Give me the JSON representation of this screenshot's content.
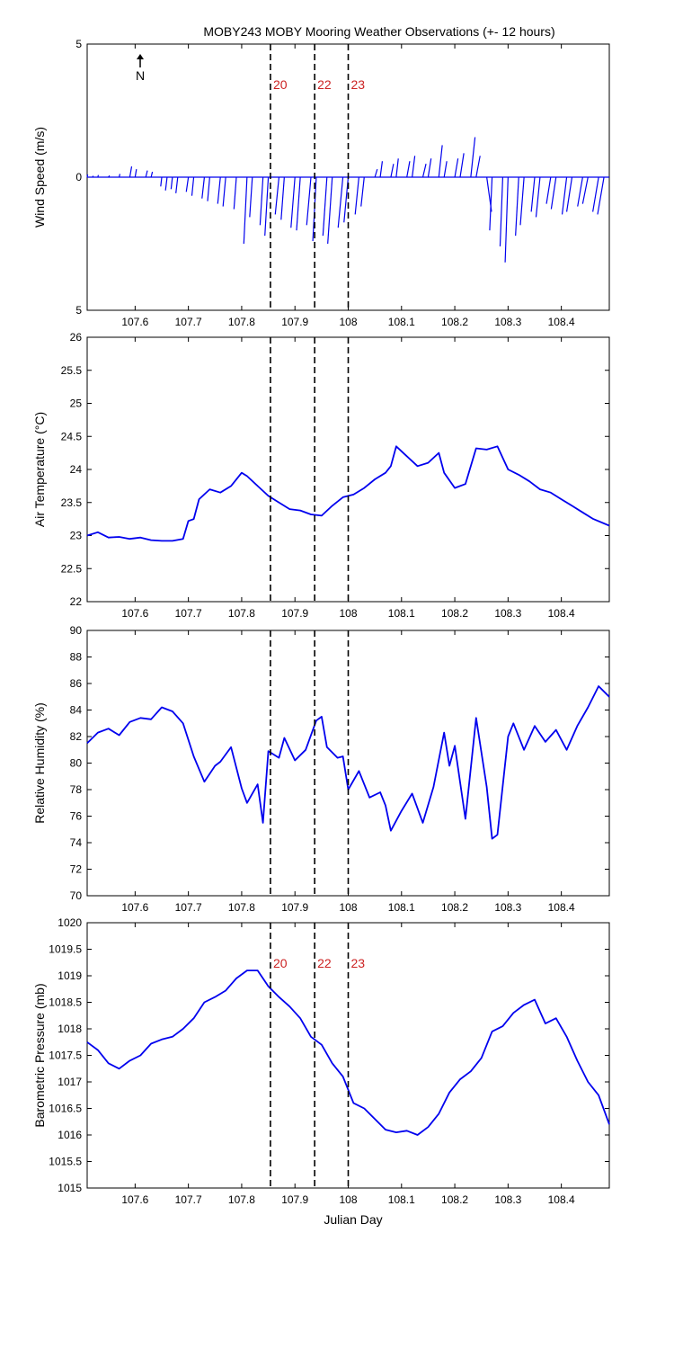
{
  "title": "MOBY243 MOBY Mooring Weather Observations (+- 12 hours)",
  "colors": {
    "series": "#0000ee",
    "marker_label": "#cc2222",
    "axis": "#000000"
  },
  "north_arrow_label": "N",
  "x_axis": {
    "xlim": [
      107.51,
      108.49
    ],
    "ticks": [
      107.6,
      107.7,
      107.8,
      107.9,
      108,
      108.1,
      108.2,
      108.3,
      108.4
    ],
    "tick_labels": [
      "107.6",
      "107.7",
      "107.8",
      "107.9",
      "108",
      "108.1",
      "108.2",
      "108.3",
      "108.4"
    ],
    "label": "Julian Day"
  },
  "markers": [
    {
      "x": 107.854,
      "label": "20"
    },
    {
      "x": 107.937,
      "label": "22"
    },
    {
      "x": 108.0,
      "label": "23"
    }
  ],
  "chart_data": [
    {
      "type": "line",
      "subtype": "wind-stick",
      "ylabel": "Wind Speed (m/s)",
      "ylim": [
        -5,
        5
      ],
      "yticks": [
        5,
        0,
        -5
      ],
      "ytick_labels": [
        "5",
        "0",
        "5"
      ],
      "show_marker_labels": true,
      "series": [
        {
          "x": [
            107.51,
            107.52,
            107.53,
            107.55,
            107.57,
            107.59,
            107.6,
            107.62,
            107.63,
            107.65,
            107.66,
            107.67,
            107.68,
            107.7,
            107.71,
            107.73,
            107.74,
            107.76,
            107.77,
            107.79,
            107.81,
            107.82,
            107.84,
            107.85,
            107.87,
            107.88,
            107.9,
            107.91,
            107.93,
            107.94,
            107.96,
            107.97,
            107.99,
            108.0,
            108.02,
            108.03,
            108.05,
            108.06,
            108.08,
            108.09,
            108.11,
            108.12,
            108.14,
            108.15,
            108.17,
            108.18,
            108.2,
            108.21,
            108.23,
            108.24,
            108.26,
            108.27,
            108.29,
            108.3,
            108.32,
            108.33,
            108.35,
            108.36,
            108.38,
            108.39,
            108.41,
            108.42,
            108.44,
            108.45,
            108.47,
            108.48
          ],
          "u": [
            0.02,
            0.03,
            0.02,
            0.04,
            0.03,
            0.07,
            0.05,
            0.06,
            0.05,
            -0.04,
            -0.06,
            -0.05,
            -0.07,
            -0.08,
            -0.07,
            -0.09,
            -0.08,
            -0.1,
            -0.1,
            -0.09,
            -0.12,
            -0.1,
            -0.11,
            -0.13,
            -0.14,
            -0.12,
            -0.15,
            -0.14,
            -0.16,
            -0.13,
            -0.15,
            -0.17,
            -0.18,
            -0.16,
            -0.14,
            -0.12,
            0.09,
            0.08,
            0.1,
            0.08,
            0.11,
            0.1,
            0.12,
            0.11,
            0.13,
            0.1,
            0.12,
            0.14,
            0.16,
            0.15,
            0.18,
            -0.09,
            -0.1,
            -0.11,
            -0.12,
            -0.14,
            -0.13,
            -0.15,
            -0.16,
            -0.18,
            -0.17,
            -0.2,
            -0.19,
            -0.2,
            -0.22,
            -0.24
          ],
          "v": [
            0.1,
            0.05,
            0.08,
            0.06,
            0.12,
            0.4,
            0.3,
            0.25,
            0.2,
            -0.35,
            -0.5,
            -0.45,
            -0.6,
            -0.55,
            -0.7,
            -0.8,
            -0.9,
            -1.0,
            -1.1,
            -1.2,
            -2.5,
            -1.5,
            -1.8,
            -2.2,
            -1.4,
            -1.6,
            -1.9,
            -2.0,
            -1.8,
            -2.4,
            -2.2,
            -2.5,
            -1.9,
            -1.7,
            -1.4,
            -1.1,
            0.3,
            0.6,
            0.5,
            0.7,
            0.6,
            0.8,
            0.5,
            0.7,
            1.2,
            0.6,
            0.7,
            0.9,
            1.5,
            0.8,
            -1.3,
            -2.0,
            -2.6,
            -3.2,
            -2.2,
            -1.8,
            -1.3,
            -1.5,
            -1.0,
            -1.2,
            -1.4,
            -1.3,
            -1.1,
            -1.0,
            -1.3,
            -1.4
          ]
        }
      ]
    },
    {
      "type": "line",
      "ylabel": "Air Temperature (°C)",
      "ylim": [
        22,
        26
      ],
      "yticks": [
        22,
        22.5,
        23,
        23.5,
        24,
        24.5,
        25,
        25.5,
        26
      ],
      "ytick_labels": [
        "22",
        "22.5",
        "23",
        "23.5",
        "24",
        "24.5",
        "25",
        "25.5",
        "26"
      ],
      "show_marker_labels": false,
      "series": [
        {
          "x": [
            107.51,
            107.53,
            107.55,
            107.57,
            107.59,
            107.61,
            107.63,
            107.65,
            107.67,
            107.69,
            107.7,
            107.71,
            107.72,
            107.74,
            107.76,
            107.78,
            107.8,
            107.81,
            107.83,
            107.85,
            107.87,
            107.89,
            107.91,
            107.93,
            107.95,
            107.97,
            107.99,
            108.01,
            108.03,
            108.05,
            108.07,
            108.08,
            108.09,
            108.11,
            108.13,
            108.15,
            108.17,
            108.18,
            108.2,
            108.22,
            108.24,
            108.26,
            108.28,
            108.3,
            108.32,
            108.34,
            108.36,
            108.38,
            108.4,
            108.42,
            108.44,
            108.46,
            108.49
          ],
          "y": [
            23.0,
            23.05,
            22.97,
            22.98,
            22.95,
            22.97,
            22.93,
            22.92,
            22.92,
            22.95,
            23.22,
            23.25,
            23.55,
            23.7,
            23.65,
            23.75,
            23.95,
            23.9,
            23.75,
            23.6,
            23.5,
            23.4,
            23.38,
            23.32,
            23.3,
            23.45,
            23.58,
            23.62,
            23.72,
            23.85,
            23.95,
            24.05,
            24.35,
            24.2,
            24.05,
            24.1,
            24.25,
            23.95,
            23.72,
            23.78,
            24.32,
            24.3,
            24.35,
            24.0,
            23.92,
            23.82,
            23.7,
            23.65,
            23.55,
            23.45,
            23.35,
            23.25,
            23.15
          ]
        }
      ]
    },
    {
      "type": "line",
      "ylabel": "Relative Humidity (%)",
      "ylim": [
        70,
        90
      ],
      "yticks": [
        70,
        72,
        74,
        76,
        78,
        80,
        82,
        84,
        86,
        88,
        90
      ],
      "ytick_labels": [
        "70",
        "72",
        "74",
        "76",
        "78",
        "80",
        "82",
        "84",
        "86",
        "88",
        "90"
      ],
      "show_marker_labels": false,
      "series": [
        {
          "x": [
            107.51,
            107.53,
            107.55,
            107.57,
            107.59,
            107.61,
            107.63,
            107.65,
            107.67,
            107.69,
            107.71,
            107.73,
            107.75,
            107.76,
            107.78,
            107.8,
            107.81,
            107.83,
            107.84,
            107.85,
            107.87,
            107.88,
            107.9,
            107.92,
            107.94,
            107.95,
            107.96,
            107.98,
            107.99,
            108.0,
            108.02,
            108.04,
            108.06,
            108.07,
            108.08,
            108.1,
            108.12,
            108.14,
            108.16,
            108.18,
            108.19,
            108.2,
            108.22,
            108.24,
            108.26,
            108.27,
            108.28,
            108.3,
            108.31,
            108.33,
            108.35,
            108.37,
            108.39,
            108.41,
            108.43,
            108.45,
            108.47,
            108.49
          ],
          "y": [
            81.5,
            82.3,
            82.6,
            82.1,
            83.1,
            83.4,
            83.3,
            84.2,
            83.9,
            83.0,
            80.5,
            78.6,
            79.8,
            80.1,
            81.2,
            78.1,
            77.0,
            78.4,
            75.5,
            80.9,
            80.4,
            81.9,
            80.2,
            81.0,
            83.2,
            83.5,
            81.2,
            80.4,
            80.5,
            78.0,
            79.4,
            77.4,
            77.8,
            76.8,
            74.9,
            76.4,
            77.7,
            75.5,
            78.2,
            82.3,
            79.8,
            81.3,
            75.8,
            83.4,
            78.2,
            74.3,
            74.6,
            82.0,
            83.0,
            81.0,
            82.8,
            81.6,
            82.5,
            81.0,
            82.8,
            84.2,
            85.8,
            85.0
          ]
        }
      ]
    },
    {
      "type": "line",
      "ylabel": "Barometric Pressure (mb)",
      "ylim": [
        1015,
        1020
      ],
      "yticks": [
        1015,
        1015.5,
        1016,
        1016.5,
        1017,
        1017.5,
        1018,
        1018.5,
        1019,
        1019.5,
        1020
      ],
      "ytick_labels": [
        "1015",
        "1015.5",
        "1016",
        "1016.5",
        "1017",
        "1017.5",
        "1018",
        "1018.5",
        "1019",
        "1019.5",
        "1020"
      ],
      "show_marker_labels": true,
      "series": [
        {
          "x": [
            107.51,
            107.53,
            107.55,
            107.57,
            107.59,
            107.61,
            107.63,
            107.65,
            107.67,
            107.69,
            107.71,
            107.73,
            107.75,
            107.77,
            107.79,
            107.81,
            107.83,
            107.85,
            107.87,
            107.89,
            107.91,
            107.93,
            107.95,
            107.97,
            107.99,
            108.01,
            108.03,
            108.05,
            108.07,
            108.09,
            108.11,
            108.13,
            108.15,
            108.17,
            108.19,
            108.21,
            108.23,
            108.25,
            108.27,
            108.29,
            108.31,
            108.33,
            108.35,
            108.37,
            108.39,
            108.41,
            108.43,
            108.45,
            108.47,
            108.49
          ],
          "y": [
            1017.75,
            1017.6,
            1017.35,
            1017.25,
            1017.4,
            1017.5,
            1017.72,
            1017.8,
            1017.85,
            1018.0,
            1018.2,
            1018.5,
            1018.6,
            1018.72,
            1018.95,
            1019.1,
            1019.1,
            1018.8,
            1018.6,
            1018.42,
            1018.2,
            1017.85,
            1017.7,
            1017.35,
            1017.1,
            1016.6,
            1016.5,
            1016.3,
            1016.1,
            1016.05,
            1016.08,
            1016.0,
            1016.15,
            1016.4,
            1016.8,
            1017.05,
            1017.2,
            1017.45,
            1017.95,
            1018.05,
            1018.3,
            1018.45,
            1018.55,
            1018.1,
            1018.2,
            1017.85,
            1017.4,
            1017.0,
            1016.75,
            1016.2
          ]
        }
      ]
    }
  ]
}
